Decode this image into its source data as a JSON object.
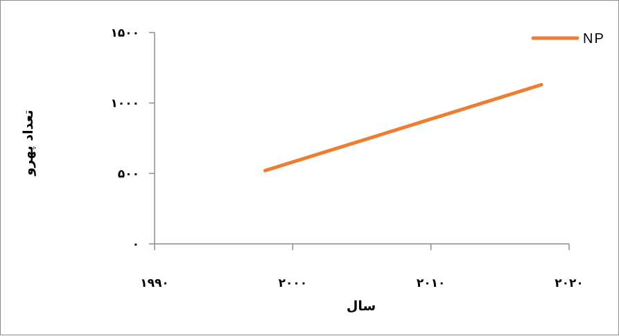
{
  "chart_data": {
    "type": "line",
    "title": "",
    "xlabel": "سال",
    "ylabel": "تعداد پهرو",
    "xlim": [
      1990,
      2020
    ],
    "ylim": [
      0,
      1500
    ],
    "x_ticks": [
      1990,
      2000,
      2010,
      2020
    ],
    "y_ticks": [
      0,
      500,
      1000,
      1500
    ],
    "x_tick_labels": [
      "۱۹۹۰",
      "۲۰۰۰",
      "۲۰۱۰",
      "۲۰۲۰"
    ],
    "y_tick_labels": [
      "۰",
      "۵۰۰",
      "۱۰۰۰",
      "۱۵۰۰"
    ],
    "grid": false,
    "legend_position": "top-right",
    "series": [
      {
        "name": "NP",
        "color": "#ed7d31",
        "x": [
          1998,
          2018
        ],
        "y": [
          520,
          1130
        ]
      }
    ]
  }
}
